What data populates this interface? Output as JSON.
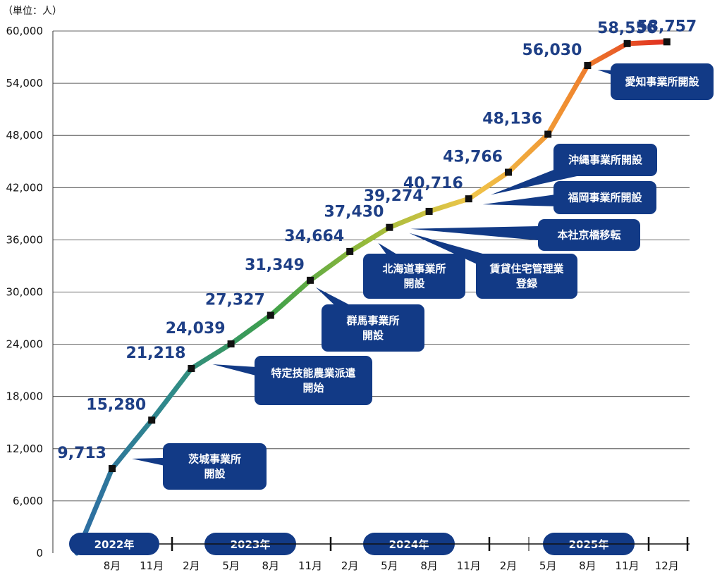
{
  "chart_data": {
    "type": "line",
    "unit_label": "（単位：人）",
    "categories": [
      "2022年8月",
      "2022年11月",
      "2023年2月",
      "2023年5月",
      "2023年8月",
      "2023年11月",
      "2024年2月",
      "2024年5月",
      "2024年8月",
      "2024年11月",
      "2025年2月",
      "2025年5月",
      "2025年8月",
      "2025年11月",
      "2025年12月"
    ],
    "x_tick_labels": [
      "8月",
      "11月",
      "2月",
      "5月",
      "8月",
      "11月",
      "2月",
      "5月",
      "8月",
      "11月",
      "2月",
      "5月",
      "8月",
      "11月",
      "12月"
    ],
    "start_value": 0,
    "values": [
      9713,
      15280,
      21218,
      24039,
      27327,
      31349,
      34664,
      37430,
      39274,
      40716,
      43766,
      48136,
      56030,
      58556,
      58757
    ],
    "value_labels": [
      "9,713",
      "15,280",
      "21,218",
      "24,039",
      "27,327",
      "31,349",
      "34,664",
      "37,430",
      "39,274",
      "40,716",
      "43,766",
      "48,136",
      "56,030",
      "58,556",
      "58,757"
    ],
    "y_ticks": [
      "0",
      "6,000",
      "12,000",
      "18,000",
      "24,000",
      "30,000",
      "36,000",
      "42,000",
      "48,000",
      "54,000",
      "60,000"
    ],
    "ylim": [
      0,
      60000
    ],
    "grid": true,
    "years": [
      "2022年",
      "2023年",
      "2024年",
      "2025年"
    ],
    "annotations": [
      {
        "text_lines": [
          "茨城事業所",
          "開設"
        ],
        "category_index": 0
      },
      {
        "text_lines": [
          "特定技能農業派遣",
          "開始"
        ],
        "category_index": 2
      },
      {
        "text_lines": [
          "群馬事業所",
          "開設"
        ],
        "category_index": 5
      },
      {
        "text_lines": [
          "北海道事業所",
          "開設"
        ],
        "category_index": 7
      },
      {
        "text_lines": [
          "賃貸住宅管理業",
          "登録"
        ],
        "category_index": 7
      },
      {
        "text_lines": [
          "本社京橋移転"
        ],
        "category_index": 7
      },
      {
        "text_lines": [
          "福岡事業所開設"
        ],
        "category_index": 9
      },
      {
        "text_lines": [
          "沖縄事業所開設"
        ],
        "category_index": 10
      },
      {
        "text_lines": [
          "愛知事業所開設"
        ],
        "category_index": 12
      }
    ],
    "colors": {
      "line_gradient": [
        "#2e6aa6",
        "#2f8a8a",
        "#3ea04a",
        "#9abb3a",
        "#f0c64a",
        "#f08c30",
        "#e02a1f"
      ],
      "callout": "#123a86",
      "value_label": "#1e3f86",
      "grid": "#333333",
      "marker": "#111111"
    }
  }
}
